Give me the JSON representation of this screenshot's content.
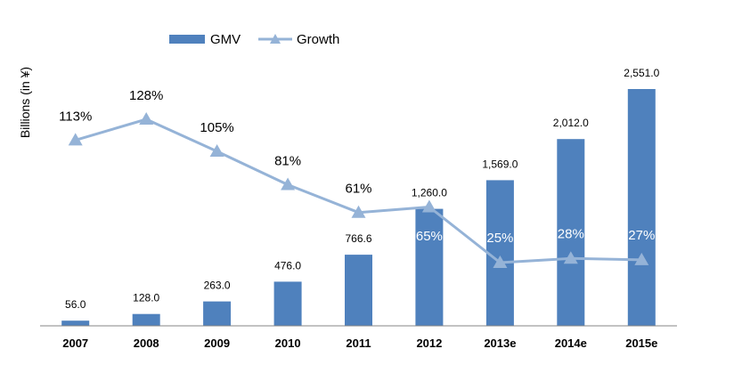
{
  "chart_data": {
    "type": "bar",
    "categories": [
      "2007",
      "2008",
      "2009",
      "2010",
      "2011",
      "2012",
      "2013e",
      "2014e",
      "2015e"
    ],
    "series": [
      {
        "name": "GMV",
        "type": "bar",
        "values": [
          56.0,
          128.0,
          263.0,
          476.0,
          766.6,
          1260.0,
          1569.0,
          2012.0,
          2551.0
        ],
        "labels": [
          "56.0",
          "128.0",
          "263.0",
          "476.0",
          "766.6",
          "1,260.0",
          "1,569.0",
          "2,012.0",
          "2,551.0"
        ],
        "color": "#4F81BD"
      },
      {
        "name": "Growth",
        "type": "line",
        "marker": "triangle",
        "values": [
          113,
          128,
          105,
          81,
          61,
          65,
          25,
          28,
          27
        ],
        "labels": [
          "113%",
          "128%",
          "105%",
          "81%",
          "61%",
          "65%",
          "25%",
          "28%",
          "27%"
        ],
        "color": "#95B3D7"
      }
    ],
    "ylabel": "Billions (in ¥)",
    "xlabel": "",
    "title": "",
    "legend": "top-left",
    "grid": false
  }
}
